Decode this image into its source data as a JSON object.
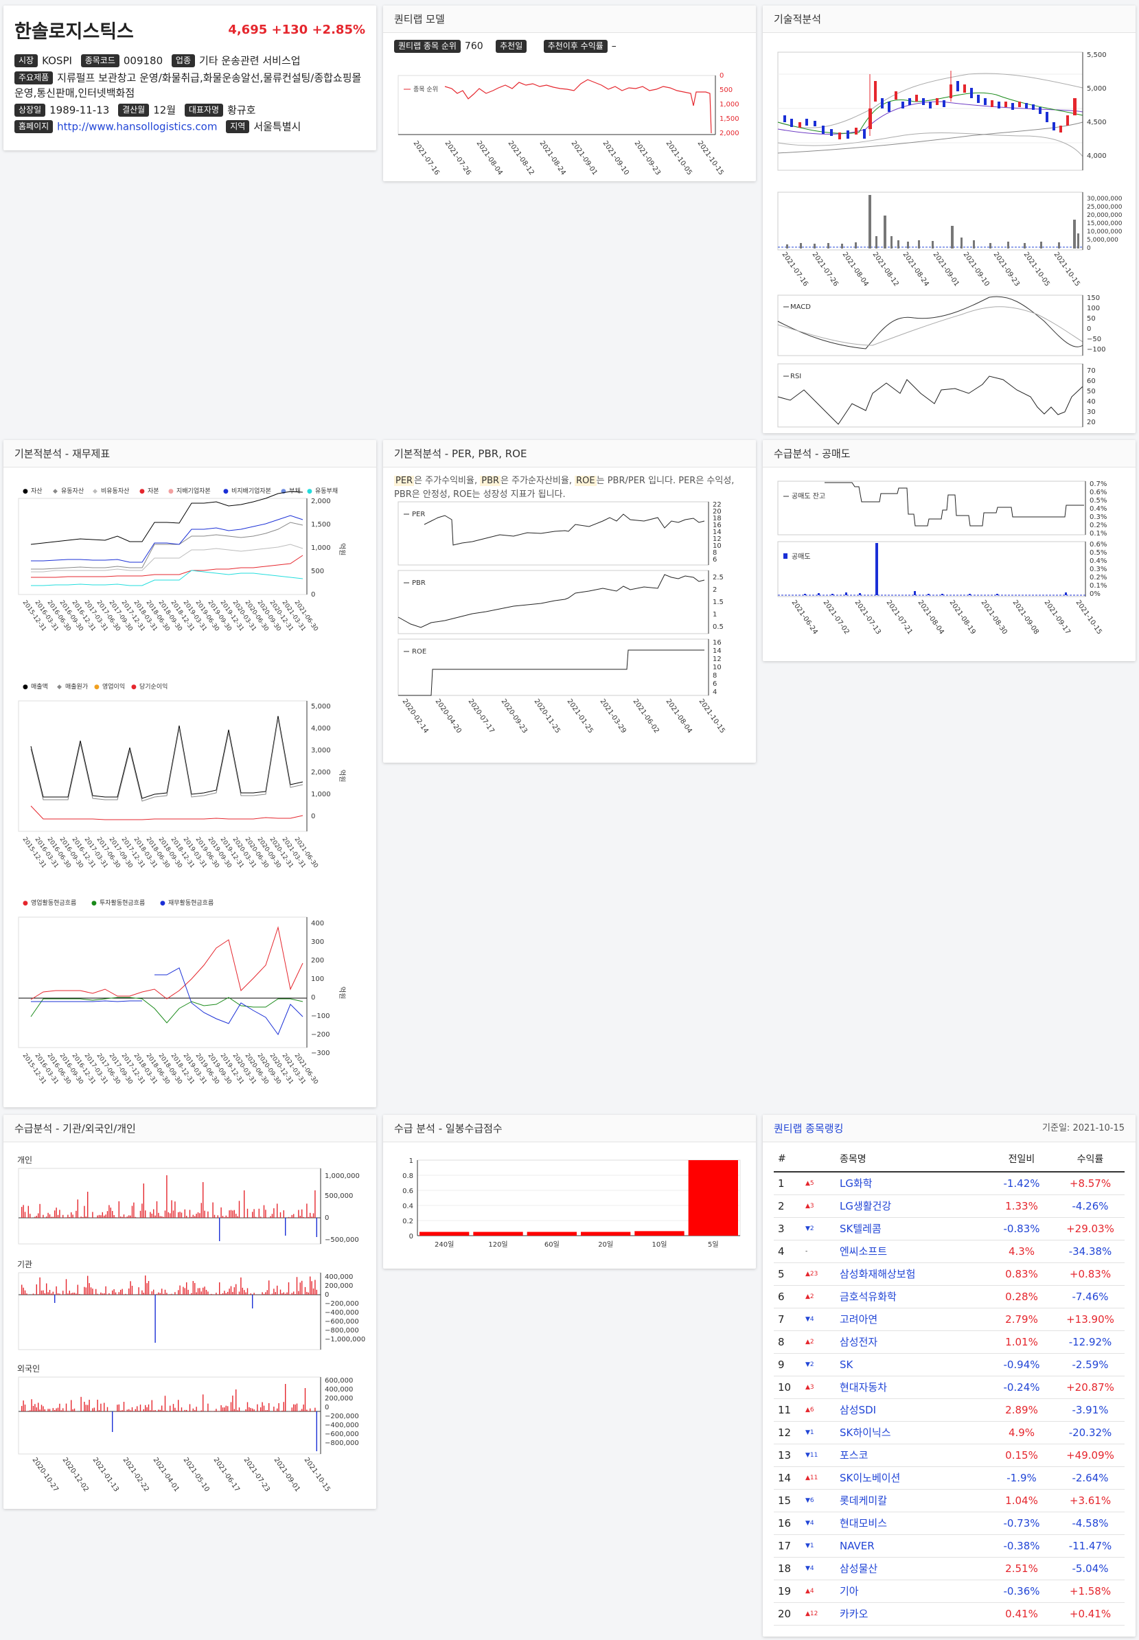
{
  "stock": {
    "name": "한솔로지스틱스",
    "price": "4,695",
    "change": "+130",
    "change_pct": "+2.85%",
    "labels": {
      "market": "시장",
      "code": "종목코드",
      "industry": "업종",
      "products": "주요제품",
      "listed": "상장일",
      "fiscal": "결산월",
      "ceo": "대표자명",
      "homepage": "홈페이지",
      "region": "지역"
    },
    "market": "KOSPI",
    "code": "009180",
    "industry": "기타 운송관련 서비스업",
    "products": "지류펄프 보관창고 운영/화물취급,화물운송알선,물류컨설팅/종합쇼핑몰운영,통신판매,인터넷백화점",
    "listed": "1989-11-13",
    "fiscal": "12월",
    "ceo": "황규호",
    "homepage": "http://www.hansollogistics.com",
    "region": "서울특별시"
  },
  "quant": {
    "title": "퀀티랩 모델",
    "rank_label": "퀀티랩 종목 순위",
    "rank_value": "760",
    "rec_date_label": "추천일",
    "rec_return_label": "추천이후 수익률",
    "rec_return_value": "–",
    "legend": "종목 순위",
    "yticks": [
      "0",
      "500",
      "1,000",
      "1,500",
      "2,000"
    ],
    "xticks": [
      "2021-07-16",
      "2021-07-26",
      "2021-08-04",
      "2021-08-12",
      "2021-08-24",
      "2021-09-01",
      "2021-09-10",
      "2021-09-23",
      "2021-10-05",
      "2021-10-15"
    ]
  },
  "technical": {
    "title": "기술적분석",
    "price_ticks": [
      "5,500",
      "5,000",
      "4,500",
      "4,000"
    ],
    "volume_ticks": [
      "30,000,000",
      "25,000,000",
      "20,000,000",
      "15,000,000",
      "10,000,000",
      "5,000,000",
      "0"
    ],
    "xticks": [
      "2021-07-16",
      "2021-07-26",
      "2021-08-04",
      "2021-08-12",
      "2021-08-24",
      "2021-09-01",
      "2021-09-10",
      "2021-09-23",
      "2021-10-05",
      "2021-10-15"
    ],
    "macd_label": "MACD",
    "macd_ticks": [
      "150",
      "100",
      "50",
      "0",
      "−50",
      "−100"
    ],
    "rsi_label": "RSI",
    "rsi_ticks": [
      "70",
      "60",
      "50",
      "40",
      "30",
      "20"
    ]
  },
  "fundamental": {
    "title": "기본적분석 - 재무제표",
    "bs_legend": [
      "자산",
      "유동자산",
      "비유동자산",
      "자본",
      "지배기업자본",
      "비지배기업자본",
      "부채",
      "유동부채"
    ],
    "bs_colors": [
      "#000000",
      "#888888",
      "#bbbbbb",
      "#e5262d",
      "#f2a0a0",
      "#1a2fd6",
      "#9ab0f0",
      "#22dddd"
    ],
    "bs_ticks": [
      "2,000",
      "1,500",
      "1,000",
      "500",
      "0"
    ],
    "unit": "억원",
    "is_legend": [
      "매출액",
      "매출원가",
      "영업이익",
      "당기순이익"
    ],
    "is_colors": [
      "#000000",
      "#888888",
      "#f0a020",
      "#e5262d"
    ],
    "is_ticks": [
      "5,000",
      "4,000",
      "3,000",
      "2,000",
      "1,000",
      "0"
    ],
    "cf_legend": [
      "영업활동현금흐름",
      "투자활동현금흐름",
      "재무활동현금흐름"
    ],
    "cf_colors": [
      "#e5262d",
      "#1a8a1a",
      "#1a2fd6"
    ],
    "cf_ticks": [
      "400",
      "300",
      "200",
      "100",
      "0",
      "−100",
      "−200",
      "−300"
    ],
    "quarters": [
      "2015-12-31",
      "2016-03-31",
      "2016-06-30",
      "2016-09-30",
      "2016-12-31",
      "2017-03-31",
      "2017-06-30",
      "2017-09-30",
      "2017-12-31",
      "2018-03-31",
      "2018-06-30",
      "2018-09-30",
      "2018-12-31",
      "2019-03-31",
      "2019-06-30",
      "2019-09-30",
      "2019-12-31",
      "2020-03-31",
      "2020-06-30",
      "2020-09-30",
      "2020-12-31",
      "2021-03-31",
      "2021-06-30"
    ]
  },
  "valuation": {
    "title": "기본적분석 - PER, PBR, ROE",
    "per_tag": "PER",
    "pbr_tag": "PBR",
    "roe_tag": "ROE",
    "desc_1": "은 주가수익비율,",
    "desc_2": "은 주가순자산비율,",
    "desc_3": "는 PBR/PER 입니다. PER은 수익성, PBR은 안정성, ROE는 성장성 지표가 됩니다.",
    "per_ticks": [
      "22",
      "20",
      "18",
      "16",
      "14",
      "12",
      "10",
      "8",
      "6"
    ],
    "pbr_ticks": [
      "2.5",
      "2",
      "1.5",
      "1",
      "0.5"
    ],
    "roe_ticks": [
      "16",
      "14",
      "12",
      "10",
      "8",
      "6",
      "4"
    ],
    "xticks": [
      "2020-02-14",
      "2020-04-20",
      "2020-07-17",
      "2020-09-23",
      "2020-11-25",
      "2021-01-25",
      "2021-03-29",
      "2021-06-02",
      "2021-08-04",
      "2021-10-15"
    ]
  },
  "short": {
    "title": "수급분석 - 공매도",
    "balance_label": "공매도 잔고",
    "ratio_label": "공매도",
    "balance_ticks": [
      "0.7%",
      "0.6%",
      "0.5%",
      "0.4%",
      "0.3%",
      "0.2%",
      "0.1%"
    ],
    "ratio_ticks": [
      "0.6%",
      "0.5%",
      "0.4%",
      "0.3%",
      "0.2%",
      "0.1%",
      "0%"
    ],
    "xticks": [
      "2021-06-24",
      "2021-07-02",
      "2021-07-13",
      "2021-07-21",
      "2021-08-04",
      "2021-08-19",
      "2021-08-30",
      "2021-09-08",
      "2021-09-17",
      "2021-10-15"
    ]
  },
  "flow": {
    "title": "수급분석 - 기관/외국인/개인",
    "individual": "개인",
    "institution": "기관",
    "foreign": "외국인",
    "ind_ticks": [
      "1,000,000",
      "500,000",
      "0",
      "−500,000"
    ],
    "inst_ticks": [
      "400,000",
      "200,000",
      "0",
      "−200,000",
      "−400,000",
      "−600,000",
      "−800,000",
      "−1,000,000"
    ],
    "for_ticks": [
      "600,000",
      "400,000",
      "200,000",
      "0",
      "−200,000",
      "−400,000",
      "−600,000",
      "−800,000"
    ],
    "xticks": [
      "2020-10-27",
      "2020-12-02",
      "2021-01-13",
      "2021-02-22",
      "2021-04-01",
      "2021-05-10",
      "2021-06-17",
      "2021-07-23",
      "2021-09-01",
      "2021-10-15"
    ]
  },
  "daily_flow": {
    "title": "수급 분석 - 일봉수급점수",
    "yticks": [
      "1",
      "0.8",
      "0.6",
      "0.4",
      "0.2",
      "0"
    ],
    "chart_data": {
      "type": "bar",
      "categories": [
        "240일",
        "120일",
        "60일",
        "20일",
        "10일",
        "5일"
      ],
      "values": [
        0.05,
        0.05,
        0.05,
        0.05,
        0.06,
        1.0
      ],
      "ylim": [
        0,
        1
      ]
    }
  },
  "ranking": {
    "title": "퀀티랩 종목랭킹",
    "base_date": "기준일: 2021-10-15",
    "headers": [
      "#",
      "종목명",
      "전일비",
      "수익률"
    ],
    "rows": [
      {
        "no": "1",
        "move": "▲5",
        "up": true,
        "name": "LG화학",
        "chg": "-1.42%",
        "ret": "+8.57%"
      },
      {
        "no": "2",
        "move": "▲3",
        "up": true,
        "name": "LG생활건강",
        "chg": "1.33%",
        "ret": "-4.26%"
      },
      {
        "no": "3",
        "move": "▼2",
        "up": false,
        "name": "SK텔레콤",
        "chg": "-0.83%",
        "ret": "+29.03%"
      },
      {
        "no": "4",
        "move": "-",
        "up": null,
        "name": "엔씨소프트",
        "chg": "4.3%",
        "ret": "-34.38%"
      },
      {
        "no": "5",
        "move": "▲23",
        "up": true,
        "name": "삼성화재해상보험",
        "chg": "0.83%",
        "ret": "+0.83%"
      },
      {
        "no": "6",
        "move": "▲2",
        "up": true,
        "name": "금호석유화학",
        "chg": "0.28%",
        "ret": "-7.46%"
      },
      {
        "no": "7",
        "move": "▼4",
        "up": false,
        "name": "고려아연",
        "chg": "2.79%",
        "ret": "+13.90%"
      },
      {
        "no": "8",
        "move": "▲2",
        "up": true,
        "name": "삼성전자",
        "chg": "1.01%",
        "ret": "-12.92%"
      },
      {
        "no": "9",
        "move": "▼2",
        "up": false,
        "name": "SK",
        "chg": "-0.94%",
        "ret": "-2.59%"
      },
      {
        "no": "10",
        "move": "▲3",
        "up": true,
        "name": "현대자동차",
        "chg": "-0.24%",
        "ret": "+20.87%"
      },
      {
        "no": "11",
        "move": "▲6",
        "up": true,
        "name": "삼성SDI",
        "chg": "2.89%",
        "ret": "-3.91%"
      },
      {
        "no": "12",
        "move": "▼1",
        "up": false,
        "name": "SK하이닉스",
        "chg": "4.9%",
        "ret": "-20.32%"
      },
      {
        "no": "13",
        "move": "▼11",
        "up": false,
        "name": "포스코",
        "chg": "0.15%",
        "ret": "+49.09%"
      },
      {
        "no": "14",
        "move": "▲11",
        "up": true,
        "name": "SK이노베이션",
        "chg": "-1.9%",
        "ret": "-2.64%"
      },
      {
        "no": "15",
        "move": "▼6",
        "up": false,
        "name": "롯데케미칼",
        "chg": "1.04%",
        "ret": "+3.61%"
      },
      {
        "no": "16",
        "move": "▼4",
        "up": false,
        "name": "현대모비스",
        "chg": "-0.73%",
        "ret": "-4.58%"
      },
      {
        "no": "17",
        "move": "▼1",
        "up": false,
        "name": "NAVER",
        "chg": "-0.38%",
        "ret": "-11.47%"
      },
      {
        "no": "18",
        "move": "▼4",
        "up": false,
        "name": "삼성물산",
        "chg": "2.51%",
        "ret": "-5.04%"
      },
      {
        "no": "19",
        "move": "▲4",
        "up": true,
        "name": "기아",
        "chg": "-0.36%",
        "ret": "+1.58%"
      },
      {
        "no": "20",
        "move": "▲12",
        "up": true,
        "name": "카카오",
        "chg": "0.41%",
        "ret": "+0.41%"
      }
    ]
  }
}
